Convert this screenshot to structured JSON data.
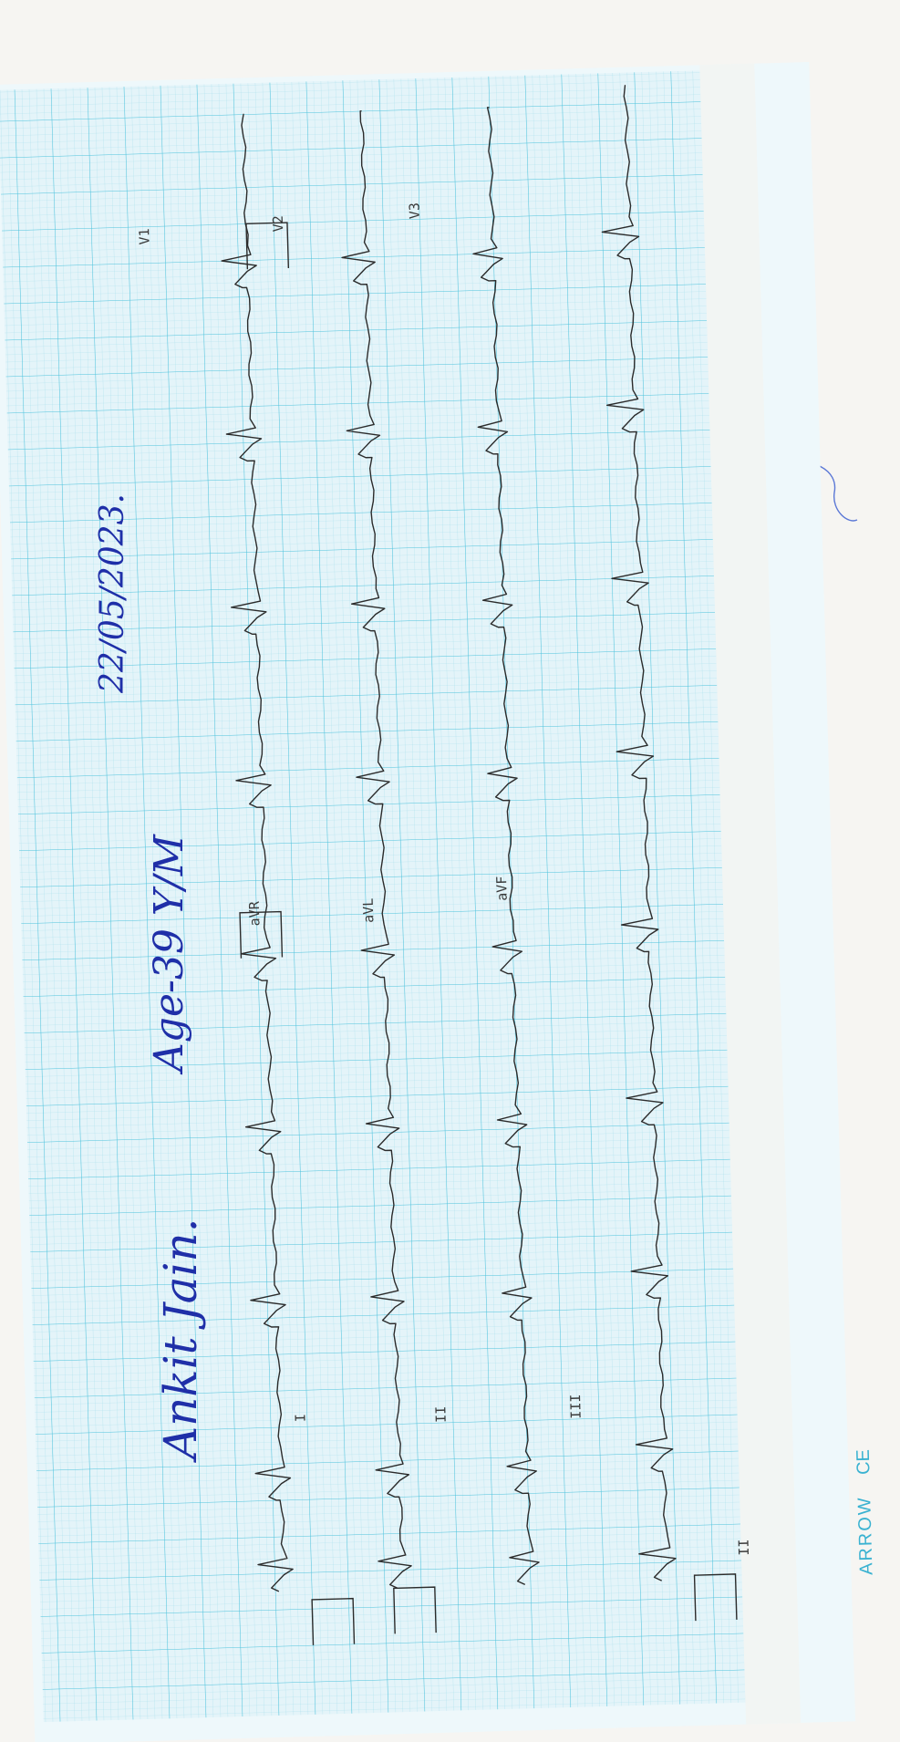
{
  "handwriting": {
    "patient_name": "Ankit Jain.",
    "age_sex": "Age-39 Y/M",
    "date": "22/05/2023."
  },
  "leads": {
    "I": "I",
    "II": "II",
    "III": "III",
    "aVR": "aVR",
    "aVL": "aVL",
    "aVF": "aVF",
    "V1": "V1",
    "V2": "V2",
    "V3": "V3",
    "rhythm": "II"
  },
  "brand": {
    "logo": "ARROW",
    "mark": "CE"
  },
  "colors": {
    "paper": "#e4f4f9",
    "grid_major": "#4cc2dc",
    "grid_minor": "#a9dfec",
    "trace": "#2b2b2b",
    "ink": "#1f2fa8",
    "brand": "#3ab2d1"
  }
}
